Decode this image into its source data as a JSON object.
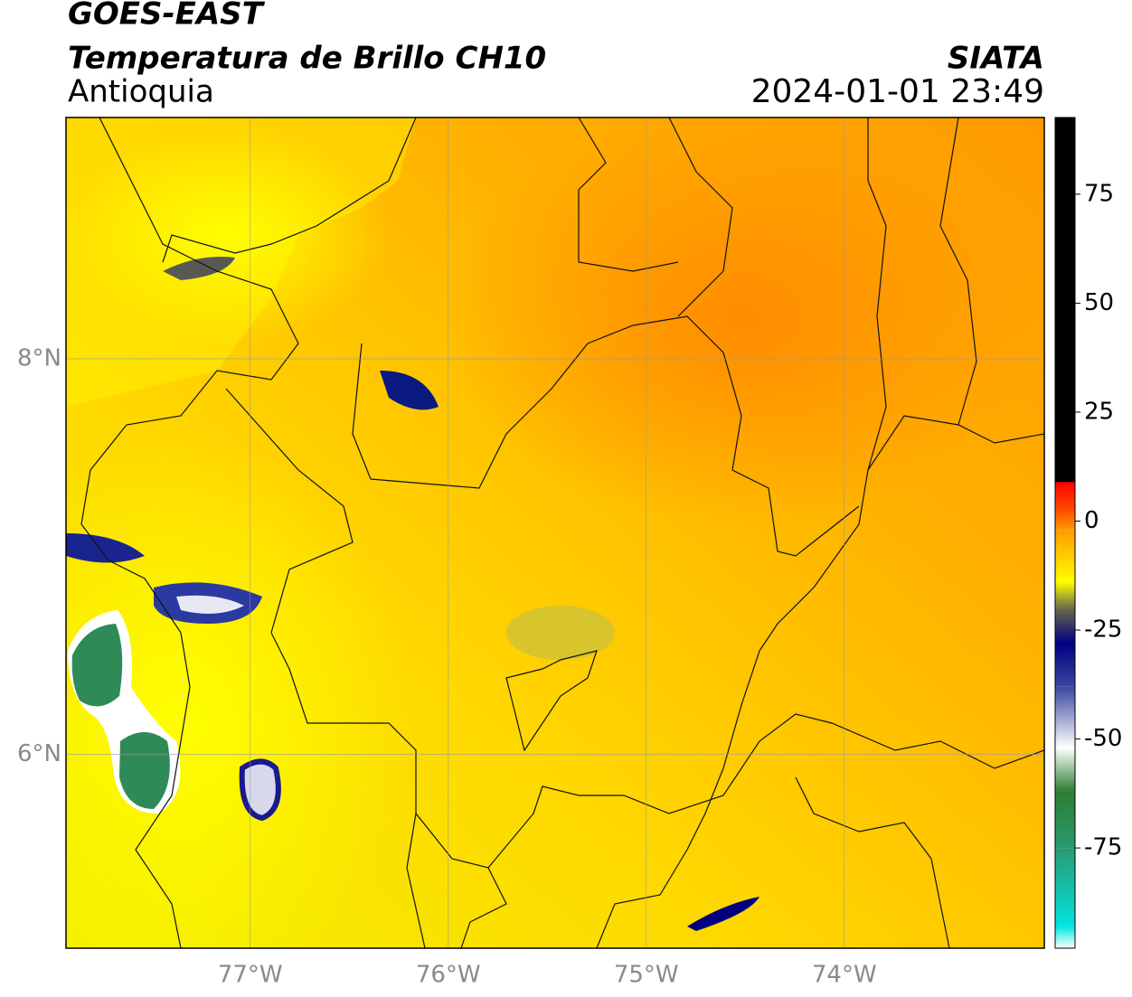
{
  "header": {
    "title": "GOES-EAST",
    "subtitle": "Temperatura de Brillo CH10",
    "region": "Antioquia",
    "source": "SIATA",
    "datetime": "2024-01-01 23:49"
  },
  "map": {
    "xlim": [
      -77.93,
      -72.99
    ],
    "ylim": [
      5.02,
      9.22
    ],
    "xticks": [
      {
        "value": -77,
        "label": "77°W"
      },
      {
        "value": -76,
        "label": "76°W"
      },
      {
        "value": -75,
        "label": "75°W"
      },
      {
        "value": -74,
        "label": "74°W"
      }
    ],
    "yticks": [
      {
        "value": 6,
        "label": "6°N"
      },
      {
        "value": 8,
        "label": "8°N"
      }
    ],
    "grid": true
  },
  "colorbar": {
    "lim": [
      -98,
      92.6
    ],
    "ticks": [
      75,
      50,
      25,
      0,
      -25,
      -50,
      -75
    ],
    "stops": [
      {
        "value": -98,
        "color": "#ffffff"
      },
      {
        "value": -93,
        "color": "#00e5e0"
      },
      {
        "value": -75,
        "color": "#2a9a70"
      },
      {
        "value": -62,
        "color": "#2e7d32"
      },
      {
        "value": -52,
        "color": "#ffffff"
      },
      {
        "value": -38,
        "color": "#3a46a0"
      },
      {
        "value": -28,
        "color": "#000080"
      },
      {
        "value": -20,
        "color": "#6a6a4a"
      },
      {
        "value": -14,
        "color": "#ffff00"
      },
      {
        "value": -2,
        "color": "#ff9900"
      },
      {
        "value": 3,
        "color": "#ff4400"
      },
      {
        "value": 9,
        "color": "#ff0000"
      },
      {
        "value": 9.01,
        "color": "#000000"
      },
      {
        "value": 92.6,
        "color": "#000000"
      }
    ]
  }
}
